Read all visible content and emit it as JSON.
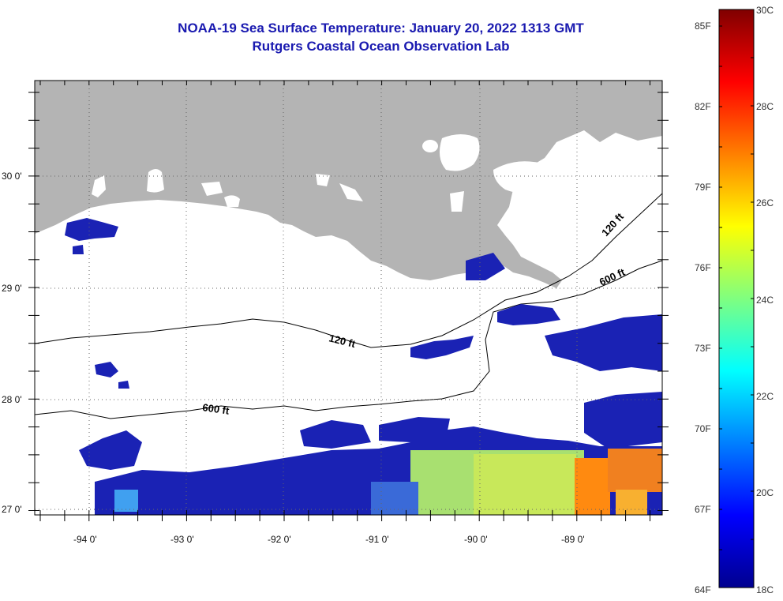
{
  "title": {
    "line1": "NOAA-19 Sea Surface Temperature:  January 20, 2022 1313 GMT",
    "line2": "Rutgers Coastal Ocean Observation Lab"
  },
  "map": {
    "lat_labels": [
      "30 0'",
      "29 0'",
      "28 0'",
      "27 0'"
    ],
    "lon_labels": [
      "-94 0'",
      "-93 0'",
      "-92 0'",
      "-91 0'",
      "-90 0'",
      "-89 0'"
    ],
    "contour_labels": [
      "120 ft",
      "120 ft",
      "600 ft",
      "600 ft"
    ],
    "colors": {
      "land": "#b4b4b4",
      "ocean_clouds": "#ffffff",
      "title": "#1a1ab0"
    }
  },
  "colorbar": {
    "f_labels": [
      "85F",
      "82F",
      "79F",
      "76F",
      "73F",
      "70F",
      "67F",
      "64F"
    ],
    "c_labels": [
      "30C",
      "28C",
      "26C",
      "24C",
      "22C",
      "20C",
      "18C"
    ],
    "range_c": [
      18,
      30
    ],
    "colormap": "jet"
  }
}
